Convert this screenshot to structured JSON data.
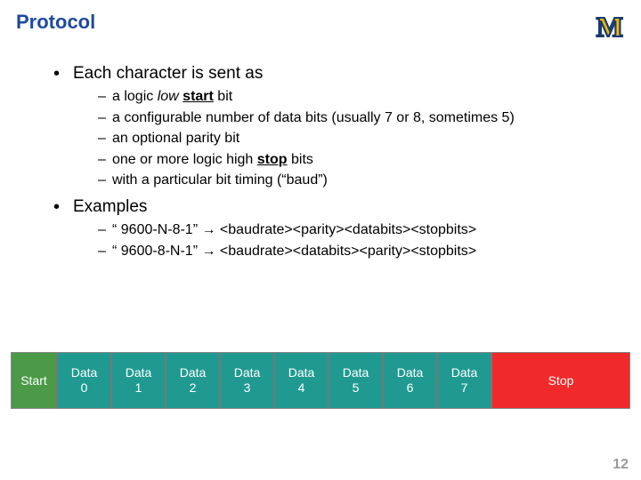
{
  "title": "Protocol",
  "logo": {
    "text": "M"
  },
  "bullets": [
    {
      "label": "Each character is sent as",
      "sub": [
        {
          "pre": "a logic ",
          "italic": "low",
          "mid": " ",
          "bold_ul": "start",
          "post": " bit"
        },
        {
          "pre": "a configurable number of data bits (usually 7 or 8, sometimes 5)"
        },
        {
          "pre": "an optional parity bit"
        },
        {
          "pre": "one or more logic high ",
          "bold_ul": "stop",
          "post": " bits"
        },
        {
          "pre": "with a particular bit timing (“baud”)"
        }
      ]
    },
    {
      "label": "Examples",
      "sub": [
        {
          "pre": "“ 9600-N-8-1” → <baudrate><parity><databits><stopbits>"
        },
        {
          "pre": "“ 9600-8-N-1” → <baudrate><databits><parity><stopbits>"
        }
      ]
    }
  ],
  "diagram": {
    "start": {
      "label": "Start",
      "bg": "#4a9a48"
    },
    "data_bg": "#209a91",
    "data": [
      "Data\n0",
      "Data\n1",
      "Data\n2",
      "Data\n3",
      "Data\n4",
      "Data\n5",
      "Data\n6",
      "Data\n7"
    ],
    "stop": {
      "label": "Stop",
      "bg": "#f02a2a"
    },
    "frame_bg": "#d8d8d8"
  },
  "page_number": "12"
}
